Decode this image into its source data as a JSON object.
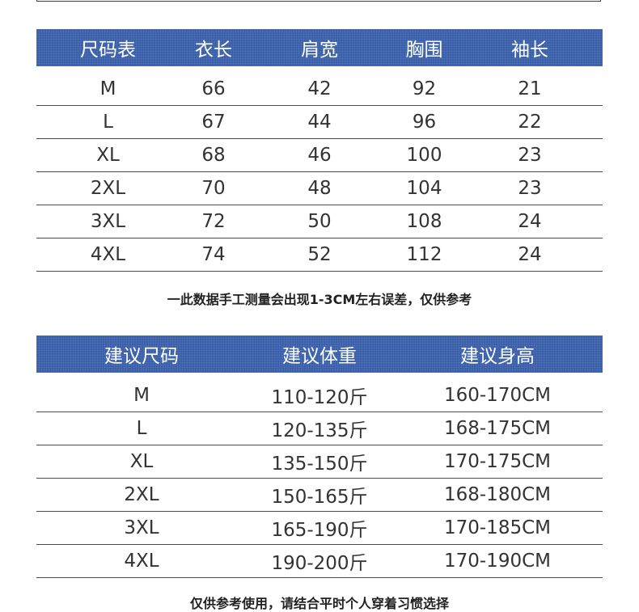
{
  "size_table": {
    "headers": [
      "尺码表",
      "衣长",
      "肩宽",
      "胸围",
      "袖长"
    ],
    "rows": [
      [
        "M",
        "66",
        "42",
        "92",
        "21"
      ],
      [
        "L",
        "67",
        "44",
        "96",
        "22"
      ],
      [
        "XL",
        "68",
        "46",
        "100",
        "23"
      ],
      [
        "2XL",
        "70",
        "48",
        "104",
        "23"
      ],
      [
        "3XL",
        "72",
        "50",
        "108",
        "24"
      ],
      [
        "4XL",
        "74",
        "52",
        "112",
        "24"
      ]
    ]
  },
  "measure_note": "一此数据手工测量会出现1-3CM左右误差，仅供参考",
  "recommend_table": {
    "headers": [
      "建议尺码",
      "建议体重",
      "建议身高"
    ],
    "rows": [
      [
        "M",
        "110-120斤",
        "160-170CM"
      ],
      [
        "L",
        "120-135斤",
        "168-175CM"
      ],
      [
        "XL",
        "135-150斤",
        "170-175CM"
      ],
      [
        "2XL",
        "150-165斤",
        "168-180CM"
      ],
      [
        "3XL",
        "165-190斤",
        "170-185CM"
      ],
      [
        "4XL",
        "190-200斤",
        "170-190CM"
      ]
    ]
  },
  "bottom_note": "仅供参考使用，请结合平时个人穿着习惯选择"
}
